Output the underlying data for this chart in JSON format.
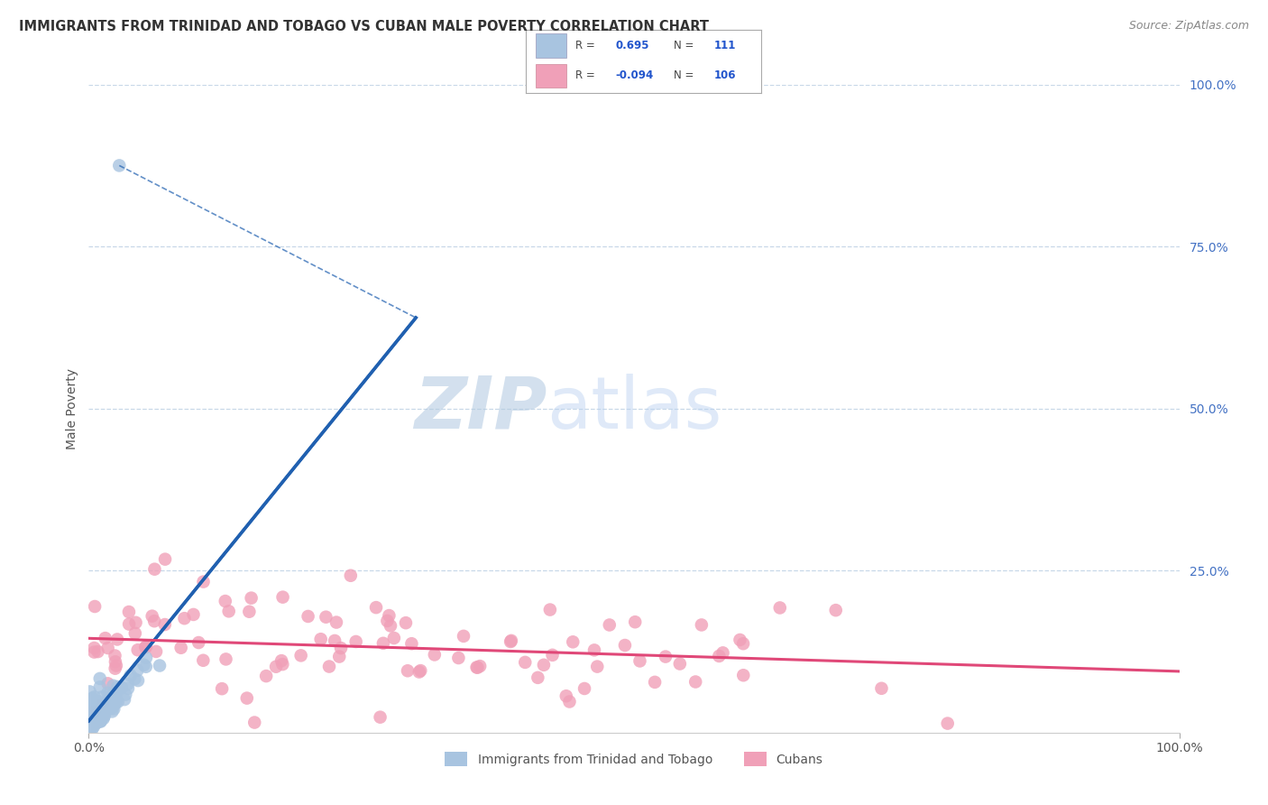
{
  "title": "IMMIGRANTS FROM TRINIDAD AND TOBAGO VS CUBAN MALE POVERTY CORRELATION CHART",
  "source": "Source: ZipAtlas.com",
  "ylabel": "Male Poverty",
  "series1_label": "Immigrants from Trinidad and Tobago",
  "series1_R": 0.695,
  "series1_N": 111,
  "series1_color": "#a8c4e0",
  "series1_edge_color": "#a8c4e0",
  "series1_line_color": "#2060b0",
  "series2_label": "Cubans",
  "series2_R": -0.094,
  "series2_N": 106,
  "series2_color": "#f0a0b8",
  "series2_edge_color": "#f0a0b8",
  "series2_line_color": "#e04878",
  "watermark_zip": "ZIP",
  "watermark_atlas": "atlas",
  "background_color": "#ffffff",
  "grid_color": "#c8d8e8",
  "title_color": "#333333",
  "tick_color": "#4472c4",
  "xlim": [
    0.0,
    1.0
  ],
  "ylim": [
    0.0,
    1.0
  ],
  "seed": 42
}
